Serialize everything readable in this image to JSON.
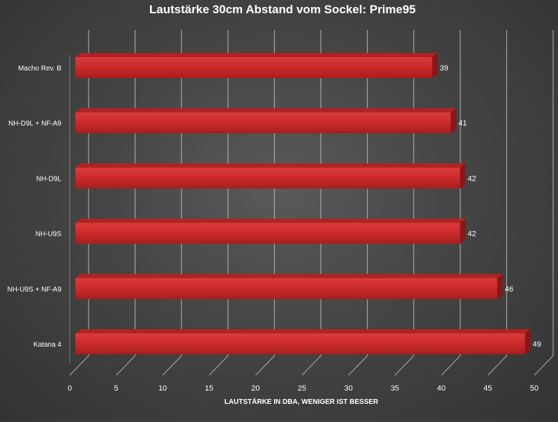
{
  "chart_data": {
    "type": "bar",
    "orientation": "horizontal",
    "title": "Lautstärke 30cm Abstand vom Sockel: Prime95",
    "xlabel": "LAUTSTÄRKE IN DBA, WENIGER IST BESSER",
    "ylabel": "",
    "categories": [
      "Macho Rev. B",
      "NH-D9L + NF-A9",
      "NH-D9L",
      "NH-U9S",
      "NH-U9S + NF-A9",
      "Katana 4"
    ],
    "values": [
      39,
      41,
      42,
      42,
      46,
      49
    ],
    "xlim": [
      0,
      50
    ],
    "ticks": [
      0,
      5,
      10,
      15,
      20,
      25,
      30,
      35,
      40,
      45,
      50
    ],
    "grid": true,
    "legend": "none",
    "bar_style": "3d",
    "colors": {
      "bar": "#c62828",
      "bar_top": "#b32222",
      "bar_side": "#8a1717",
      "gridline": "#bdbdbd",
      "text": "#ffffff"
    }
  }
}
